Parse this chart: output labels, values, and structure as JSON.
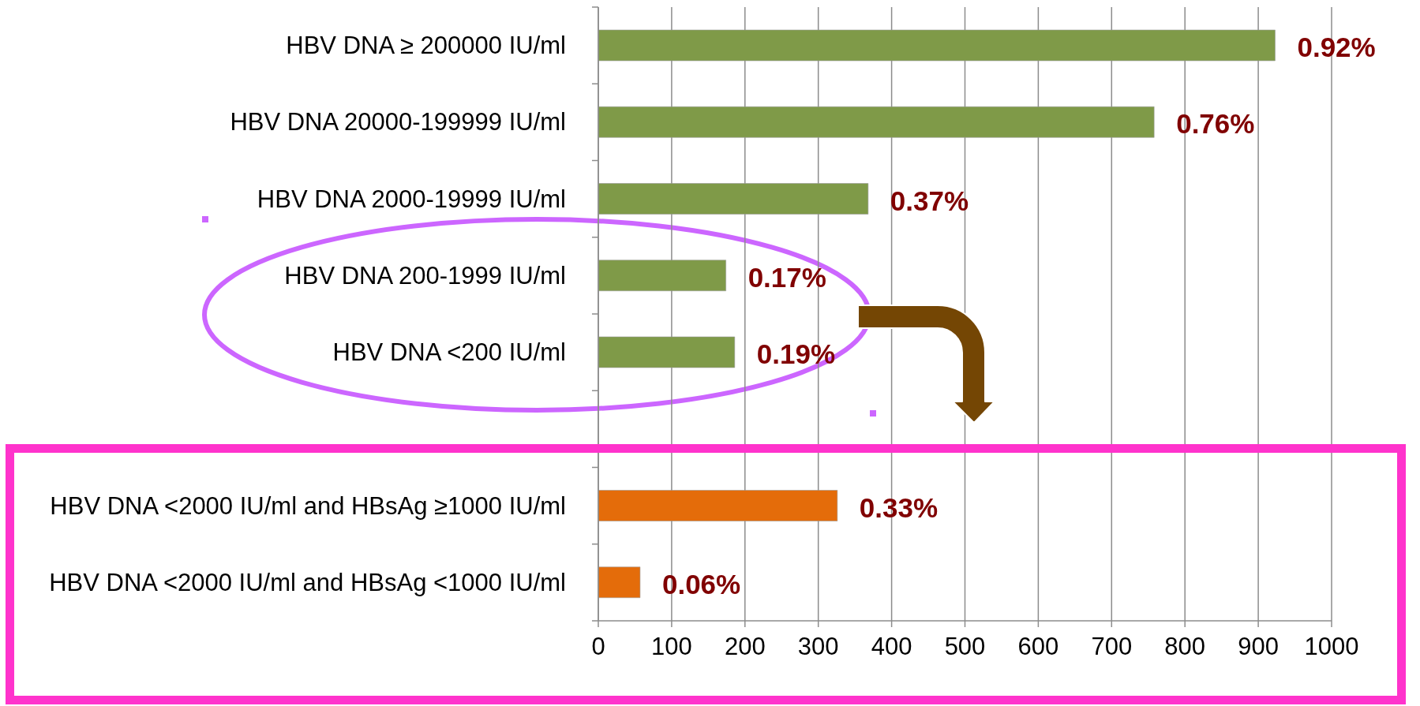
{
  "chart_data": {
    "type": "bar",
    "orientation": "horizontal",
    "categories": [
      "HBV DNA ≥ 200000 IU/ml",
      "HBV DNA 20000-199999 IU/ml",
      "HBV DNA 2000-19999 IU/ml",
      "HBV DNA 200-1999 IU/ml",
      "HBV DNA <200 IU/ml",
      null,
      "HBV DNA <2000 IU/ml and HBsAg ≥1000 IU/ml",
      "HBV DNA <2000 IU/ml and HBsAg <1000 IU/ml"
    ],
    "values": [
      923,
      758,
      368,
      174,
      186,
      null,
      326,
      57
    ],
    "colors": [
      "#7f9a48",
      "#7f9a48",
      "#7f9a48",
      "#7f9a48",
      "#7f9a48",
      null,
      "#e46c0a",
      "#e46c0a"
    ],
    "annotations": [
      {
        "text": "0.92%",
        "x": 923,
        "y": "HBV DNA ≥ 200000 IU/ml"
      },
      {
        "text": "0.76%",
        "x": 758,
        "y": "HBV DNA 20000-199999 IU/ml"
      },
      {
        "text": "0.37%",
        "x": 368,
        "y": "HBV DNA 2000-19999 IU/ml"
      },
      {
        "text": "0.17%",
        "x": 174,
        "y": "HBV DNA 200-1999 IU/ml"
      },
      {
        "text": "0.19%",
        "x": 186,
        "y": "HBV DNA <200 IU/ml"
      },
      {
        "text": "0.33%",
        "x": 326,
        "y": "HBV DNA <2000 IU/ml and HBsAg ≥1000 IU/ml"
      },
      {
        "text": "0.06%",
        "x": 57,
        "y": "HBV DNA <2000 IU/ml and HBsAg <1000 IU/ml"
      }
    ],
    "xlim": [
      0,
      1000
    ],
    "xticks": [
      0,
      100,
      200,
      300,
      400,
      500,
      600,
      700,
      800,
      900,
      1000
    ],
    "grid": "x"
  }
}
